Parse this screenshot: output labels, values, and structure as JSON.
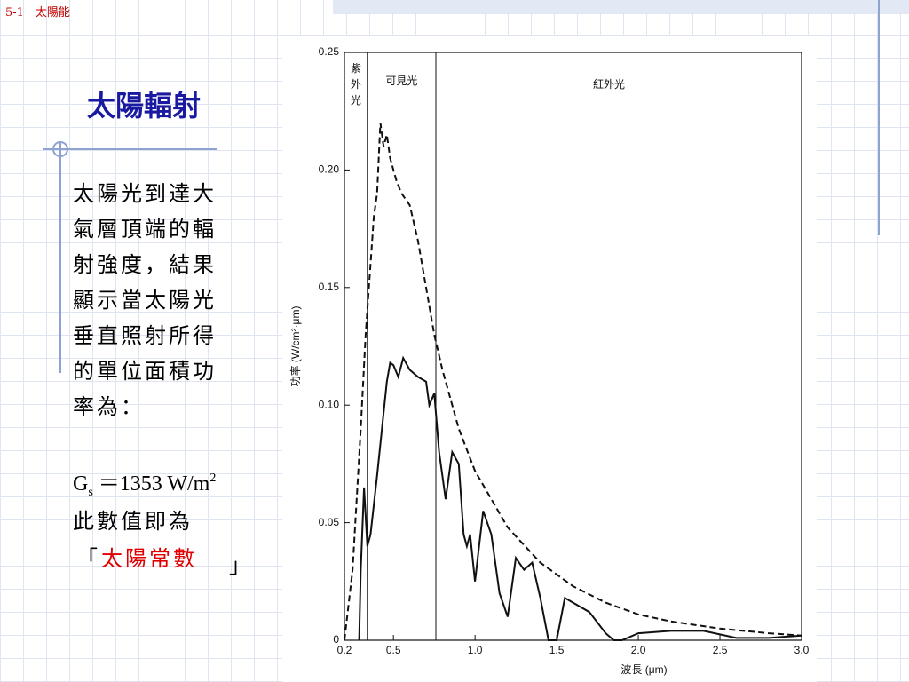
{
  "header": "5-1　太陽能",
  "title": "太陽輻射",
  "body_lines": [
    "太陽光到達大",
    "氣層頂端的輻",
    "射強度，結果",
    "顯示當太陽光",
    "垂直照射所得",
    "的單位面積功",
    "率為："
  ],
  "formula": {
    "symbol": "G",
    "subscript": "s",
    "rest": "＝1353 W/m",
    "superscript": "2"
  },
  "conclusion": "此數值即為",
  "quote_open": "「",
  "highlight": "太陽常數",
  "quote_close": "」",
  "chart_data": {
    "type": "line",
    "xlabel": "波長 (μm)",
    "ylabel": "功率 (W/cm²·μm)",
    "xlim": [
      0.2,
      3.0
    ],
    "ylim": [
      0,
      0.25
    ],
    "xticks": [
      0.2,
      0.5,
      {
        "value": 1.0,
        "label": "1.0"
      },
      1.5,
      {
        "value": 2.0,
        "label": "2.0"
      },
      2.5,
      {
        "value": 3.0,
        "label": "3.0"
      }
    ],
    "yticks": [
      0,
      0.05,
      {
        "value": 0.1,
        "label": "0.10"
      },
      0.15,
      {
        "value": 0.2,
        "label": "0.20"
      },
      0.25
    ],
    "vlines": [
      0.34,
      0.76
    ],
    "regions": [
      "紫外光",
      "可見光",
      "紅外光"
    ],
    "series": [
      {
        "color": "#111111",
        "dashed": true,
        "x": [
          0.2,
          0.25,
          0.3,
          0.33,
          0.36,
          0.38,
          0.4,
          0.42,
          0.44,
          0.46,
          0.48,
          0.5,
          0.52,
          0.55,
          0.6,
          0.65,
          0.7,
          0.75,
          0.8,
          0.9,
          1.0,
          1.2,
          1.4,
          1.6,
          1.8,
          2.0,
          2.2,
          2.5,
          2.8,
          3.0
        ],
        "values": [
          0,
          0.03,
          0.09,
          0.13,
          0.16,
          0.18,
          0.19,
          0.22,
          0.21,
          0.215,
          0.205,
          0.2,
          0.195,
          0.19,
          0.185,
          0.17,
          0.15,
          0.13,
          0.115,
          0.09,
          0.072,
          0.048,
          0.033,
          0.023,
          0.016,
          0.011,
          0.008,
          0.005,
          0.003,
          0.002
        ]
      },
      {
        "color": "#111111",
        "dashed": false,
        "x": [
          0.29,
          0.3,
          0.32,
          0.34,
          0.36,
          0.4,
          0.43,
          0.46,
          0.48,
          0.5,
          0.53,
          0.56,
          0.6,
          0.65,
          0.7,
          0.72,
          0.75,
          0.78,
          0.82,
          0.86,
          0.9,
          0.93,
          0.95,
          0.97,
          1.0,
          1.05,
          1.1,
          1.15,
          1.2,
          1.25,
          1.3,
          1.35,
          1.4,
          1.45,
          1.5,
          1.55,
          1.6,
          1.7,
          1.8,
          1.85,
          1.9,
          2.0,
          2.2,
          2.4,
          2.6,
          2.8,
          3.0
        ],
        "values": [
          0,
          0.03,
          0.065,
          0.04,
          0.045,
          0.07,
          0.09,
          0.11,
          0.118,
          0.117,
          0.112,
          0.12,
          0.115,
          0.112,
          0.11,
          0.1,
          0.105,
          0.08,
          0.06,
          0.08,
          0.075,
          0.045,
          0.04,
          0.045,
          0.025,
          0.055,
          0.045,
          0.02,
          0.01,
          0.035,
          0.03,
          0.033,
          0.018,
          0,
          0,
          0.018,
          0.016,
          0.012,
          0.003,
          0,
          0,
          0.003,
          0.004,
          0.004,
          0.001,
          0.001,
          0.002
        ]
      }
    ]
  }
}
